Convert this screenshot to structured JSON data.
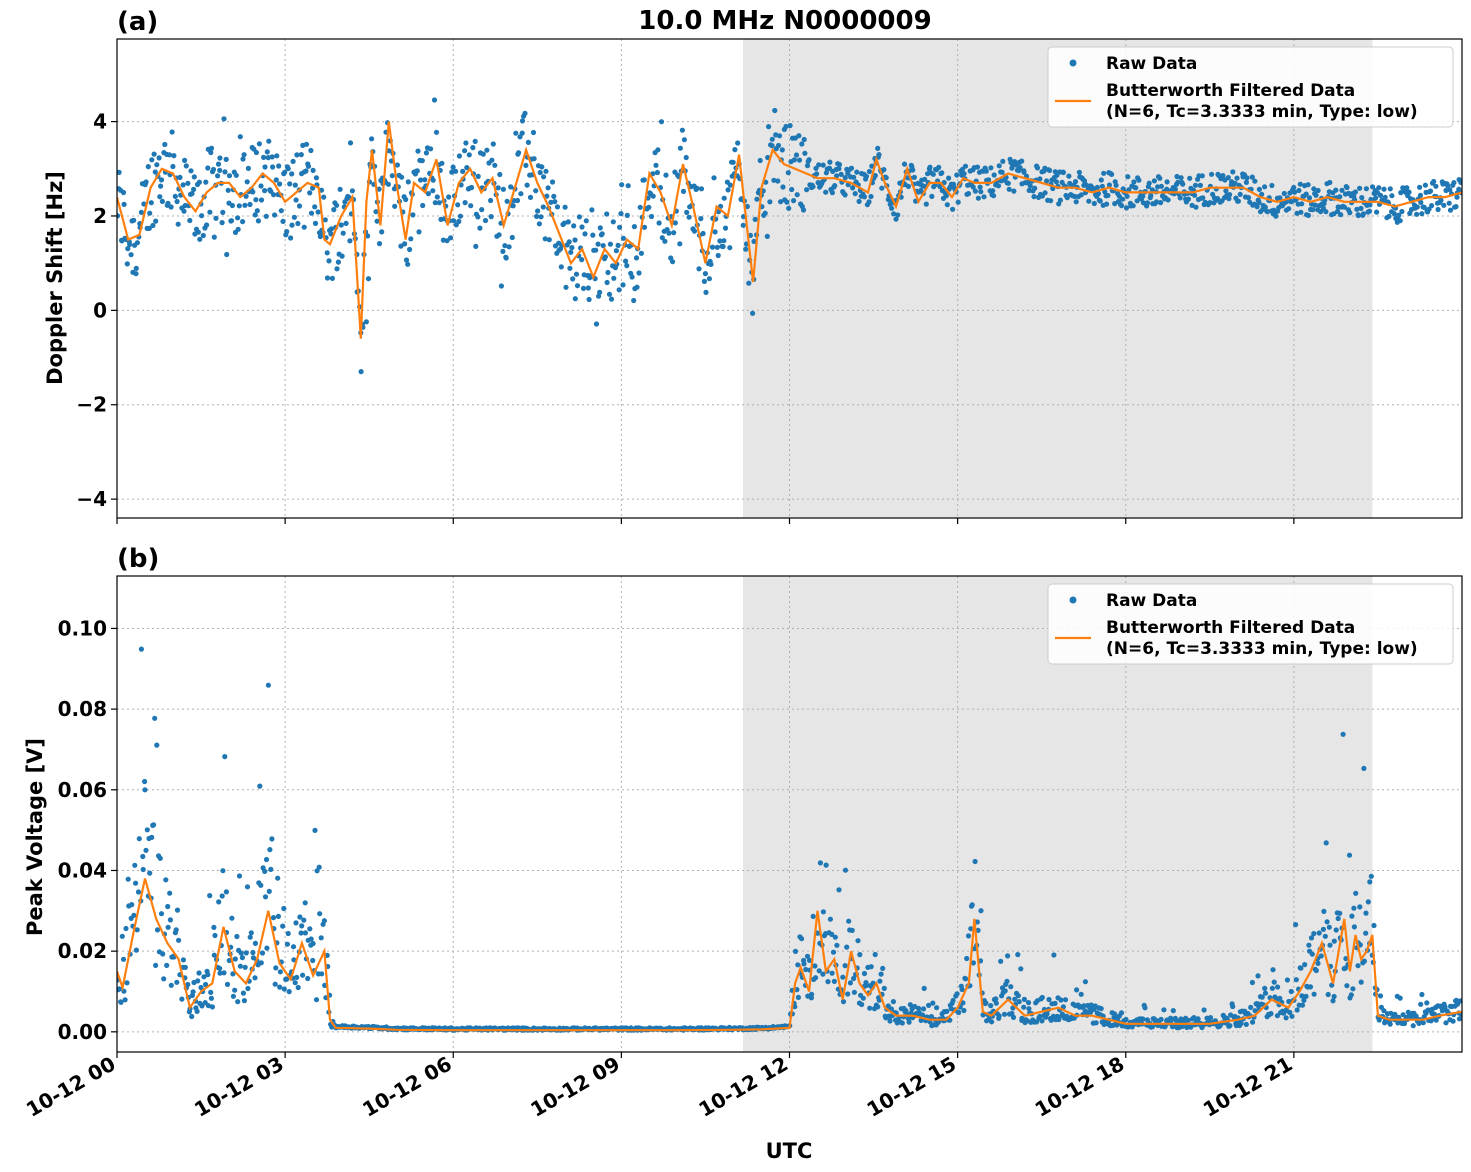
{
  "figure": {
    "title": "10.0 MHz N0000009",
    "xlabel": "UTC",
    "shade_color": "#e6e6e6",
    "raw_color": "#1f77b4",
    "filtered_color": "#ff7f0e"
  },
  "legend": {
    "raw": "Raw Data",
    "filtered_line1": "Butterworth Filtered Data",
    "filtered_line2": "(N=6, Tc=3.3333 min, Type: low)"
  },
  "chart_data": [
    {
      "panel_label": "(a)",
      "type": "line",
      "ylabel": "Doppler Shift [Hz]",
      "xlim_hours": [
        0,
        24
      ],
      "ylim": [
        -4.4,
        5.75
      ],
      "x_ticks": [
        {
          "h": 0,
          "label": "10-12 00"
        },
        {
          "h": 3,
          "label": "10-12 03"
        },
        {
          "h": 6,
          "label": "10-12 06"
        },
        {
          "h": 9,
          "label": "10-12 09"
        },
        {
          "h": 12,
          "label": "10-12 12"
        },
        {
          "h": 15,
          "label": "10-12 15"
        },
        {
          "h": 18,
          "label": "10-12 18"
        },
        {
          "h": 21,
          "label": "10-12 21"
        }
      ],
      "y_ticks": [
        {
          "v": 4,
          "label": "4"
        },
        {
          "v": 2,
          "label": "2"
        },
        {
          "v": 0,
          "label": "0"
        },
        {
          "v": -2,
          "label": "−2"
        },
        {
          "v": -4,
          "label": "−4"
        }
      ],
      "grid": true,
      "legend_position": "top-right",
      "shaded_hours": [
        11.17,
        22.4
      ],
      "filtered": {
        "x": [
          0,
          0.2,
          0.4,
          0.6,
          0.8,
          1.0,
          1.2,
          1.4,
          1.6,
          1.8,
          2.0,
          2.2,
          2.4,
          2.6,
          2.8,
          3.0,
          3.2,
          3.4,
          3.6,
          3.7,
          3.8,
          4.0,
          4.2,
          4.35,
          4.45,
          4.55,
          4.7,
          4.85,
          5.0,
          5.15,
          5.3,
          5.5,
          5.7,
          5.9,
          6.1,
          6.3,
          6.5,
          6.7,
          6.9,
          7.1,
          7.3,
          7.5,
          7.7,
          7.9,
          8.1,
          8.3,
          8.5,
          8.7,
          8.9,
          9.1,
          9.3,
          9.5,
          9.7,
          9.9,
          10.1,
          10.3,
          10.5,
          10.7,
          10.9,
          11.1,
          11.2,
          11.35,
          11.5,
          11.7,
          11.9,
          12.1,
          12.3,
          12.5,
          12.8,
          13.1,
          13.4,
          13.55,
          13.7,
          13.9,
          14.1,
          14.3,
          14.5,
          14.7,
          14.9,
          15.1,
          15.3,
          15.6,
          15.9,
          16.2,
          16.5,
          16.8,
          17.1,
          17.4,
          17.7,
          18.0,
          18.3,
          18.6,
          18.9,
          19.2,
          19.5,
          19.8,
          20.1,
          20.4,
          20.7,
          21.0,
          21.3,
          21.6,
          21.9,
          22.2,
          22.5,
          22.8,
          23.1,
          23.4,
          23.7,
          24.0
        ],
        "y": [
          2.4,
          1.5,
          1.6,
          2.6,
          3.0,
          2.9,
          2.4,
          2.1,
          2.5,
          2.7,
          2.7,
          2.4,
          2.6,
          2.9,
          2.7,
          2.3,
          2.5,
          2.7,
          2.6,
          1.5,
          1.4,
          2.0,
          2.4,
          -0.6,
          2.3,
          3.4,
          1.8,
          4.0,
          2.6,
          1.5,
          2.7,
          2.5,
          3.2,
          1.8,
          2.7,
          3.0,
          2.5,
          2.8,
          1.8,
          2.6,
          3.4,
          2.7,
          2.2,
          1.6,
          1.0,
          1.3,
          0.7,
          1.3,
          1.0,
          1.5,
          1.3,
          2.9,
          2.5,
          1.8,
          3.1,
          2.1,
          1.0,
          2.2,
          2.0,
          3.3,
          2.2,
          0.6,
          2.6,
          3.4,
          3.1,
          3.0,
          2.9,
          2.8,
          2.8,
          2.7,
          2.5,
          3.2,
          2.7,
          2.2,
          3.0,
          2.3,
          2.7,
          2.7,
          2.4,
          2.8,
          2.7,
          2.7,
          2.9,
          2.8,
          2.7,
          2.6,
          2.6,
          2.5,
          2.6,
          2.5,
          2.5,
          2.5,
          2.5,
          2.5,
          2.6,
          2.6,
          2.6,
          2.4,
          2.3,
          2.4,
          2.3,
          2.4,
          2.3,
          2.3,
          2.3,
          2.2,
          2.3,
          2.4,
          2.4,
          2.5
        ]
      }
    },
    {
      "panel_label": "(b)",
      "type": "line",
      "ylabel": "Peak Voltage [V]",
      "xlim_hours": [
        0,
        24
      ],
      "ylim": [
        -0.005,
        0.113
      ],
      "x_ticks": [
        {
          "h": 0,
          "label": "10-12 00"
        },
        {
          "h": 3,
          "label": "10-12 03"
        },
        {
          "h": 6,
          "label": "10-12 06"
        },
        {
          "h": 9,
          "label": "10-12 09"
        },
        {
          "h": 12,
          "label": "10-12 12"
        },
        {
          "h": 15,
          "label": "10-12 15"
        },
        {
          "h": 18,
          "label": "10-12 18"
        },
        {
          "h": 21,
          "label": "10-12 21"
        }
      ],
      "y_ticks": [
        {
          "v": 0.1,
          "label": "0.10"
        },
        {
          "v": 0.08,
          "label": "0.08"
        },
        {
          "v": 0.06,
          "label": "0.06"
        },
        {
          "v": 0.04,
          "label": "0.04"
        },
        {
          "v": 0.02,
          "label": "0.02"
        },
        {
          "v": 0.0,
          "label": "0.00"
        }
      ],
      "grid": true,
      "legend_position": "top-right",
      "shaded_hours": [
        11.17,
        22.4
      ],
      "filtered": {
        "x": [
          0,
          0.1,
          0.3,
          0.5,
          0.7,
          0.9,
          1.1,
          1.3,
          1.5,
          1.7,
          1.9,
          2.1,
          2.3,
          2.5,
          2.7,
          2.9,
          3.1,
          3.3,
          3.5,
          3.7,
          3.8,
          3.9,
          4.5,
          5.0,
          6.0,
          7.0,
          8.0,
          9.0,
          10.0,
          11.0,
          11.5,
          12.0,
          12.1,
          12.2,
          12.35,
          12.5,
          12.65,
          12.8,
          12.95,
          13.1,
          13.25,
          13.4,
          13.55,
          13.7,
          13.9,
          14.2,
          14.5,
          14.8,
          15.0,
          15.2,
          15.3,
          15.45,
          15.6,
          15.9,
          16.2,
          16.5,
          16.8,
          17.1,
          17.4,
          17.7,
          18.0,
          18.5,
          19.0,
          19.5,
          20.0,
          20.3,
          20.6,
          20.9,
          21.1,
          21.3,
          21.5,
          21.7,
          21.9,
          22.0,
          22.1,
          22.2,
          22.3,
          22.4,
          22.5,
          22.7,
          23.0,
          23.3,
          23.6,
          24.0
        ],
        "y": [
          0.015,
          0.011,
          0.025,
          0.038,
          0.028,
          0.022,
          0.018,
          0.006,
          0.01,
          0.012,
          0.026,
          0.015,
          0.012,
          0.018,
          0.03,
          0.017,
          0.013,
          0.022,
          0.014,
          0.02,
          0.003,
          0.001,
          0.0008,
          0.0005,
          0.0004,
          0.0004,
          0.0004,
          0.0004,
          0.0004,
          0.0005,
          0.0006,
          0.001,
          0.012,
          0.016,
          0.01,
          0.03,
          0.015,
          0.018,
          0.008,
          0.02,
          0.012,
          0.009,
          0.012,
          0.006,
          0.004,
          0.004,
          0.003,
          0.003,
          0.006,
          0.012,
          0.028,
          0.005,
          0.004,
          0.008,
          0.004,
          0.005,
          0.006,
          0.004,
          0.004,
          0.003,
          0.002,
          0.002,
          0.002,
          0.002,
          0.003,
          0.004,
          0.008,
          0.006,
          0.01,
          0.015,
          0.022,
          0.012,
          0.028,
          0.015,
          0.024,
          0.018,
          0.02,
          0.024,
          0.004,
          0.003,
          0.003,
          0.003,
          0.004,
          0.005
        ]
      }
    }
  ]
}
